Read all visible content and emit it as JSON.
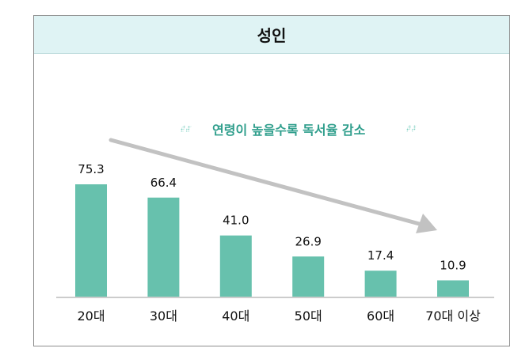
{
  "header": {
    "title": "성인"
  },
  "colors": {
    "bar": "#67c1ad",
    "accent_text": "#2f9e8c",
    "arrow": "#c2c2c2",
    "header_bg": "#dff3f4",
    "frame": "#8d8d8d"
  },
  "chart_data": {
    "type": "bar",
    "title": "성인",
    "categories": [
      "20대",
      "30대",
      "40대",
      "50대",
      "60대",
      "70대 이상"
    ],
    "values": [
      75.3,
      66.4,
      41.0,
      26.9,
      17.4,
      10.9
    ],
    "value_labels": [
      "75.3",
      "66.4",
      "41.0",
      "26.9",
      "17.4",
      "10.9"
    ],
    "xlabel": "",
    "ylabel": "",
    "ylim": [
      0,
      75.3
    ],
    "grid": false,
    "legend": "none",
    "annotation": {
      "text": "연령이 높을수록 독서율 감소",
      "open_quote": "“",
      "close_quote": "”",
      "arrow": "decreasing trend from 20대 to 70대 이상"
    }
  }
}
